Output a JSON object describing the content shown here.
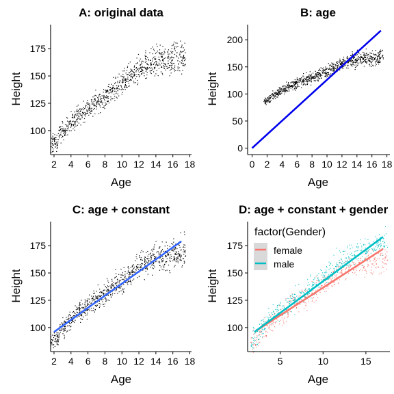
{
  "chart_data": [
    {
      "id": "A",
      "type": "scatter",
      "title": "A: original data",
      "xlabel": "Age",
      "ylabel": "Height",
      "xlim": [
        1.6,
        18.2
      ],
      "ylim": [
        78,
        197
      ],
      "xticks": [
        2,
        4,
        6,
        8,
        10,
        12,
        14,
        16,
        18
      ],
      "yticks": [
        100,
        125,
        150,
        175
      ],
      "point_color": "#000000",
      "points": {
        "ages": [
          2,
          3,
          4,
          5,
          6,
          7,
          8,
          9,
          10,
          11,
          12,
          13,
          14,
          15,
          16,
          17
        ],
        "mean_height": [
          89,
          100,
          108,
          115,
          121,
          126,
          131,
          138,
          143,
          150,
          156,
          161,
          164,
          165,
          167,
          168
        ],
        "spread": [
          10,
          10,
          10,
          11,
          11,
          11,
          12,
          12,
          13,
          13,
          14,
          15,
          15,
          15,
          16,
          16
        ]
      },
      "lines": [],
      "grid": false
    },
    {
      "id": "B",
      "type": "scatter",
      "title": "B: age",
      "xlabel": "Age",
      "ylabel": "Height",
      "xlim": [
        -0.6,
        18.4
      ],
      "ylim": [
        -12,
        228
      ],
      "xticks": [
        0,
        2,
        4,
        6,
        8,
        10,
        12,
        14,
        16,
        18
      ],
      "yticks": [
        0,
        50,
        100,
        150,
        200
      ],
      "point_color": "#000000",
      "points": {
        "ages": [
          2,
          3,
          4,
          5,
          6,
          7,
          8,
          9,
          10,
          11,
          12,
          13,
          14,
          15,
          16,
          17
        ],
        "mean_height": [
          89,
          100,
          108,
          115,
          121,
          126,
          131,
          138,
          143,
          150,
          156,
          161,
          164,
          165,
          167,
          168
        ],
        "spread": [
          10,
          10,
          10,
          11,
          11,
          11,
          12,
          12,
          13,
          13,
          14,
          15,
          15,
          15,
          16,
          16
        ]
      },
      "lines": [
        {
          "x": [
            0,
            17.2
          ],
          "y": [
            0,
            217
          ],
          "color": "#0000EE"
        }
      ],
      "grid": false
    },
    {
      "id": "C",
      "type": "scatter",
      "title": "C: age + constant",
      "xlabel": "Age",
      "ylabel": "Height",
      "xlim": [
        1.6,
        18.2
      ],
      "ylim": [
        78,
        197
      ],
      "xticks": [
        2,
        4,
        6,
        8,
        10,
        12,
        14,
        16,
        18
      ],
      "yticks": [
        100,
        125,
        150,
        175
      ],
      "point_color": "#000000",
      "points": {
        "ages": [
          2,
          3,
          4,
          5,
          6,
          7,
          8,
          9,
          10,
          11,
          12,
          13,
          14,
          15,
          16,
          17
        ],
        "mean_height": [
          89,
          100,
          108,
          115,
          121,
          126,
          131,
          138,
          143,
          150,
          156,
          161,
          164,
          165,
          167,
          168
        ],
        "spread": [
          10,
          10,
          10,
          11,
          11,
          11,
          12,
          12,
          13,
          13,
          14,
          15,
          15,
          15,
          16,
          16
        ]
      },
      "lines": [
        {
          "x": [
            2,
            17
          ],
          "y": [
            96,
            179
          ],
          "color": "#3366FF"
        }
      ],
      "grid": false
    },
    {
      "id": "D",
      "type": "scatter",
      "title": "D: age + constant + gender",
      "xlabel": "Age",
      "ylabel": "Height",
      "xlim": [
        1.2,
        17.8
      ],
      "ylim": [
        78,
        197
      ],
      "xticks": [
        5,
        10,
        15
      ],
      "yticks": [
        100,
        125,
        150,
        175
      ],
      "legend": {
        "title": "factor(Gender)",
        "entries": [
          {
            "label": "female",
            "color": "#F8766D"
          },
          {
            "label": "male",
            "color": "#00BFC4"
          }
        ],
        "placement": "top-left"
      },
      "series": [
        {
          "name": "female",
          "color": "#F8766D",
          "mean_height": [
            88,
            98,
            106,
            113,
            119,
            124,
            129,
            135,
            140,
            146,
            151,
            155,
            158,
            159,
            160,
            161
          ]
        },
        {
          "name": "male",
          "color": "#00BFC4",
          "mean_height": [
            90,
            102,
            110,
            117,
            123,
            128,
            133,
            141,
            146,
            154,
            161,
            167,
            170,
            172,
            175,
            176
          ]
        }
      ],
      "ages": [
        2,
        3,
        4,
        5,
        6,
        7,
        8,
        9,
        10,
        11,
        12,
        13,
        14,
        15,
        16,
        17
      ],
      "lines": [
        {
          "name": "female",
          "x": [
            2,
            17
          ],
          "y": [
            96,
            172
          ],
          "color": "#F8766D"
        },
        {
          "name": "male",
          "x": [
            2,
            17
          ],
          "y": [
            96,
            183
          ],
          "color": "#00BFC4"
        }
      ],
      "grid": false
    }
  ]
}
